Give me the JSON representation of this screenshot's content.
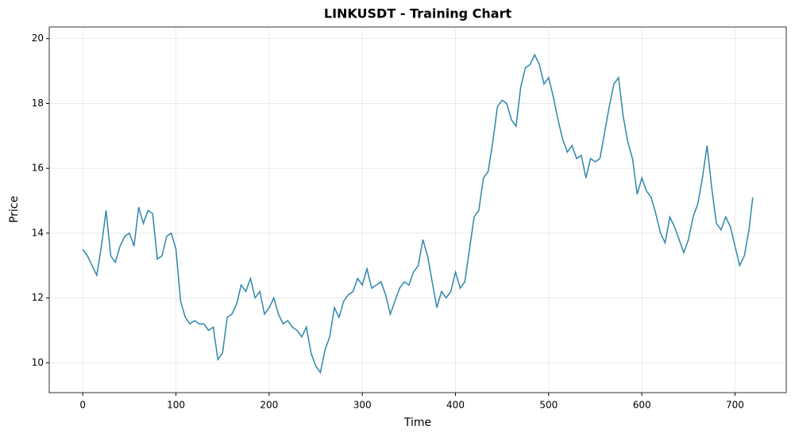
{
  "chart_data": {
    "type": "line",
    "title": "LINKUSDT - Training Chart",
    "x_label": "Time",
    "y_label": "Price",
    "x": [
      0,
      5,
      10,
      15,
      20,
      25,
      30,
      35,
      40,
      45,
      50,
      55,
      60,
      65,
      70,
      75,
      80,
      85,
      90,
      95,
      100,
      105,
      110,
      115,
      120,
      125,
      130,
      135,
      140,
      145,
      150,
      155,
      160,
      165,
      170,
      175,
      180,
      185,
      190,
      195,
      200,
      205,
      210,
      215,
      220,
      225,
      230,
      235,
      240,
      245,
      250,
      255,
      260,
      265,
      270,
      275,
      280,
      285,
      290,
      295,
      300,
      305,
      310,
      315,
      320,
      325,
      330,
      335,
      340,
      345,
      350,
      355,
      360,
      365,
      370,
      375,
      380,
      385,
      390,
      395,
      400,
      405,
      410,
      415,
      420,
      425,
      430,
      435,
      440,
      445,
      450,
      455,
      460,
      465,
      470,
      475,
      480,
      485,
      490,
      495,
      500,
      505,
      510,
      515,
      520,
      525,
      530,
      535,
      540,
      545,
      550,
      555,
      560,
      565,
      570,
      575,
      580,
      585,
      590,
      595,
      600,
      605,
      610,
      615,
      620,
      625,
      630,
      635,
      640,
      645,
      650,
      655,
      660,
      665,
      670,
      675,
      680,
      685,
      690,
      695,
      700,
      705,
      710,
      715,
      719
    ],
    "series": [
      {
        "name": "LINKUSDT",
        "color": "#2e86ab",
        "values": [
          13.5,
          13.3,
          13.0,
          12.7,
          13.6,
          14.7,
          13.3,
          13.1,
          13.6,
          13.9,
          14.0,
          13.6,
          14.8,
          14.3,
          14.7,
          14.6,
          13.2,
          13.3,
          13.9,
          14.0,
          13.5,
          11.9,
          11.4,
          11.2,
          11.3,
          11.2,
          11.2,
          11.0,
          11.1,
          10.1,
          10.3,
          11.4,
          11.5,
          11.8,
          12.4,
          12.2,
          12.6,
          12.0,
          12.2,
          11.5,
          11.7,
          12.0,
          11.5,
          11.2,
          11.3,
          11.1,
          11.0,
          10.8,
          11.1,
          10.3,
          9.9,
          9.7,
          10.4,
          10.8,
          11.7,
          11.4,
          11.9,
          12.1,
          12.2,
          12.6,
          12.4,
          12.9,
          12.3,
          12.4,
          12.5,
          12.1,
          11.5,
          11.9,
          12.3,
          12.5,
          12.4,
          12.8,
          13.0,
          13.8,
          13.3,
          12.5,
          11.7,
          12.2,
          12.0,
          12.2,
          12.8,
          12.3,
          12.5,
          13.5,
          14.5,
          14.7,
          15.7,
          15.9,
          16.8,
          17.9,
          18.1,
          18.0,
          17.5,
          17.3,
          18.5,
          19.1,
          19.2,
          19.5,
          19.2,
          18.6,
          18.8,
          18.2,
          17.5,
          16.9,
          16.5,
          16.7,
          16.3,
          16.4,
          15.7,
          16.3,
          16.2,
          16.3,
          17.1,
          17.9,
          18.6,
          18.8,
          17.6,
          16.8,
          16.3,
          15.2,
          15.7,
          15.3,
          15.1,
          14.6,
          14.0,
          13.7,
          14.5,
          14.2,
          13.8,
          13.4,
          13.8,
          14.5,
          14.9,
          15.7,
          16.7,
          15.4,
          14.3,
          14.1,
          14.5,
          14.2,
          13.6,
          13.0,
          13.3,
          14.1,
          15.1
        ]
      }
    ],
    "xlim": [
      -36,
      755
    ],
    "ylim": [
      9.08,
      20.36
    ],
    "xticks": [
      0,
      100,
      200,
      300,
      400,
      500,
      600,
      700
    ],
    "yticks": [
      10,
      12,
      14,
      16,
      18,
      20
    ],
    "grid": true
  }
}
